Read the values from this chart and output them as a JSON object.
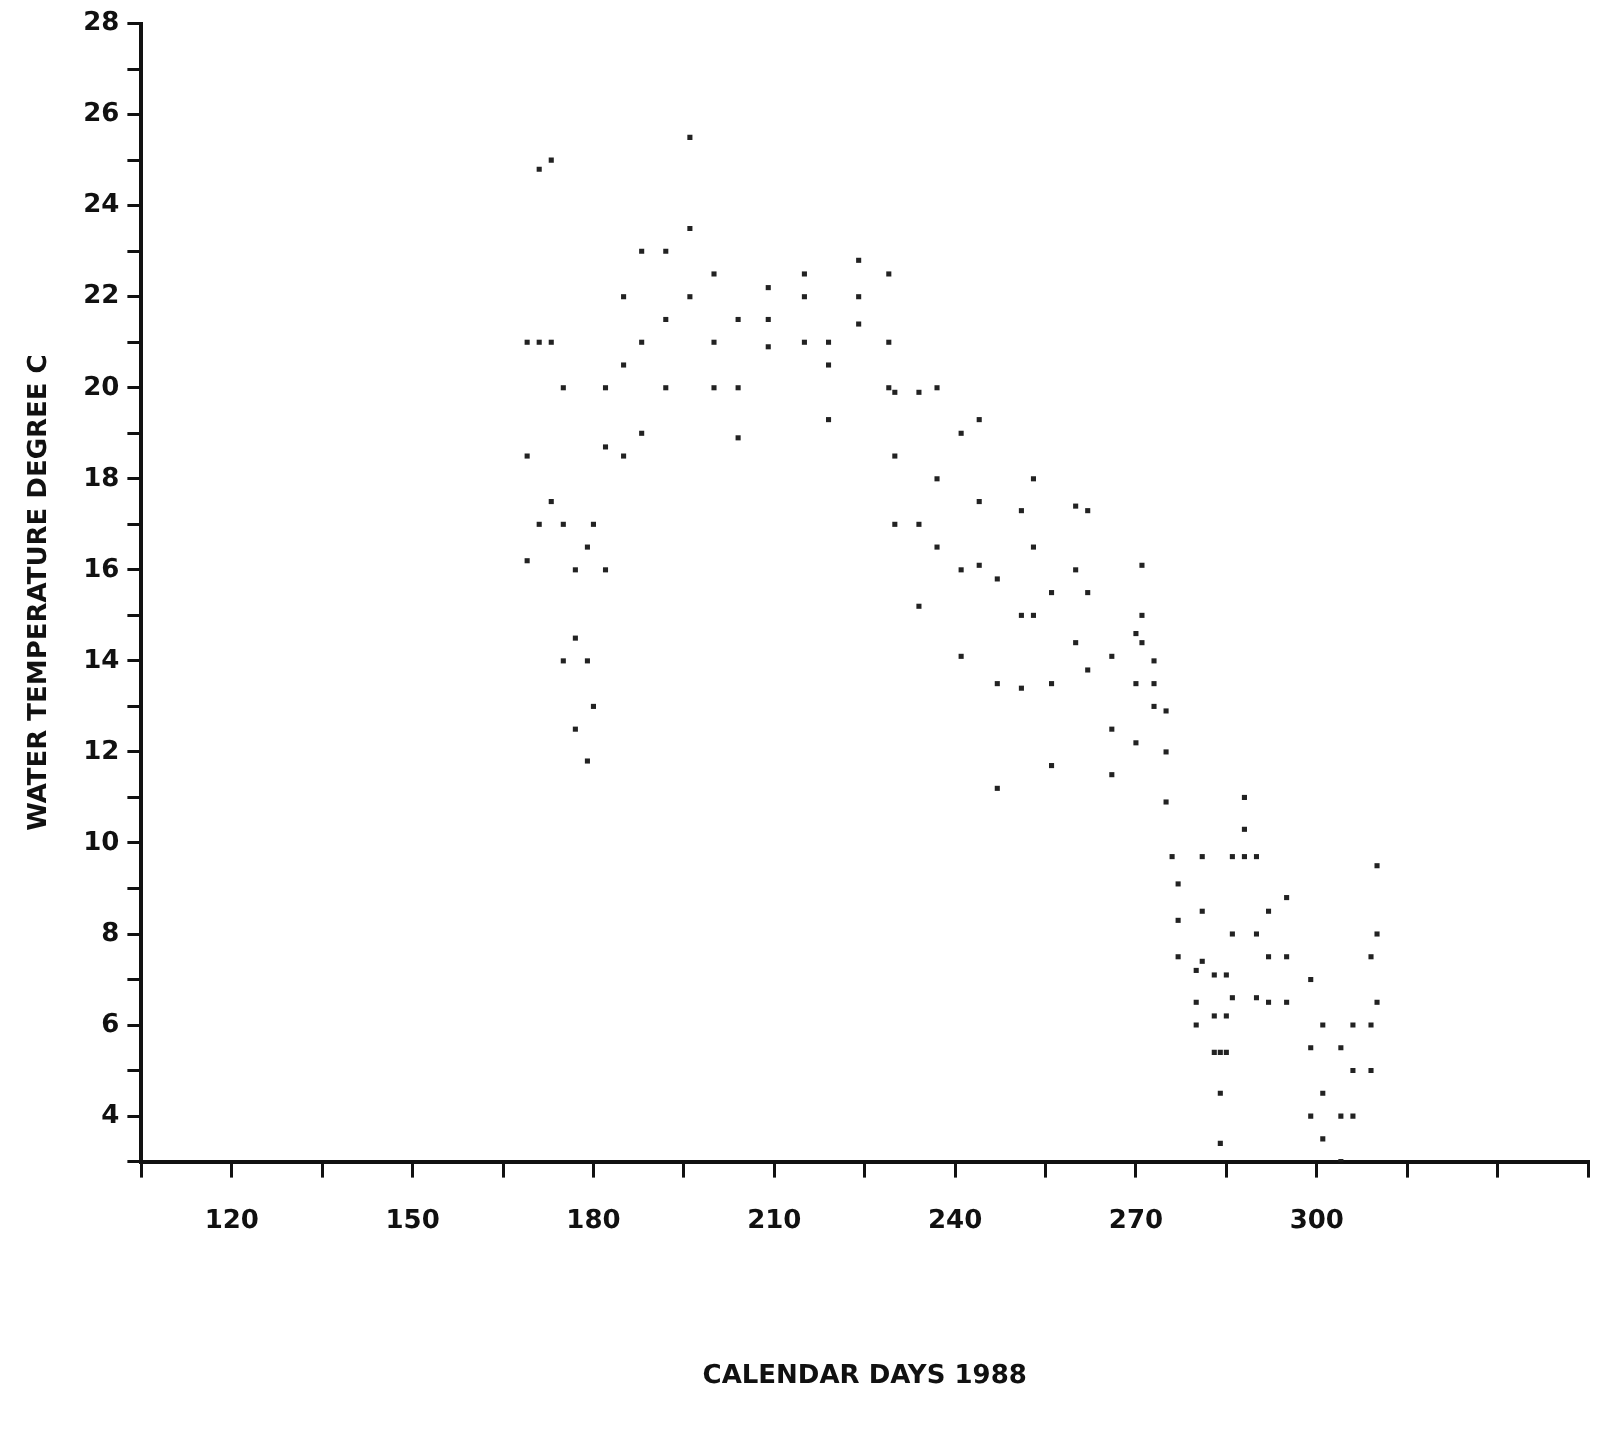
{
  "chart_data": {
    "type": "scatter",
    "xlabel": "CALENDAR DAYS 1988",
    "ylabel": "WATER TEMPERATURE DEGREE C",
    "color": "#222222",
    "marker": "square",
    "xlim": [
      105,
      345
    ],
    "xticks": [
      {
        "value": 105,
        "label": null
      },
      120,
      {
        "value": 135,
        "label": null
      },
      150,
      {
        "value": 165,
        "label": null
      },
      180,
      {
        "value": 195,
        "label": null
      },
      210,
      {
        "value": 225,
        "label": null
      },
      240,
      {
        "value": 255,
        "label": null
      },
      270,
      {
        "value": 285,
        "label": null
      },
      300,
      {
        "value": 315,
        "label": null
      },
      {
        "value": 330,
        "label": null
      },
      {
        "value": 345,
        "label": null
      }
    ],
    "ylim": [
      3,
      28
    ],
    "yticks": [
      {
        "value": 3,
        "label": null
      },
      4,
      {
        "value": 5,
        "label": null
      },
      6,
      {
        "value": 7,
        "label": null
      },
      8,
      {
        "value": 9,
        "label": null
      },
      10,
      {
        "value": 11,
        "label": null
      },
      12,
      {
        "value": 13,
        "label": null
      },
      14,
      {
        "value": 15,
        "label": null
      },
      16,
      {
        "value": 17,
        "label": null
      },
      18,
      {
        "value": 19,
        "label": null
      },
      20,
      {
        "value": 21,
        "label": null
      },
      22,
      {
        "value": 23,
        "label": null
      },
      24,
      {
        "value": 25,
        "label": null
      },
      26,
      {
        "value": 27,
        "label": null
      },
      28
    ],
    "x": [
      169,
      169,
      169,
      171,
      171,
      171,
      173,
      173,
      173,
      175,
      175,
      175,
      177,
      177,
      177,
      179,
      179,
      179,
      180,
      180,
      182,
      182,
      182,
      185,
      185,
      185,
      188,
      188,
      188,
      192,
      192,
      192,
      196,
      196,
      196,
      200,
      200,
      200,
      204,
      204,
      204,
      209,
      209,
      209,
      215,
      215,
      215,
      219,
      219,
      219,
      224,
      224,
      224,
      229,
      229,
      229,
      230,
      230,
      230,
      234,
      234,
      234,
      237,
      237,
      237,
      241,
      241,
      241,
      244,
      244,
      244,
      247,
      247,
      247,
      251,
      251,
      251,
      253,
      253,
      253,
      256,
      256,
      256,
      260,
      260,
      260,
      262,
      262,
      262,
      266,
      266,
      266,
      270,
      270,
      270,
      271,
      271,
      271,
      273,
      273,
      273,
      275,
      275,
      275,
      276,
      277,
      277,
      277,
      280,
      280,
      280,
      281,
      281,
      281,
      283,
      283,
      283,
      284,
      284,
      284,
      285,
      285,
      285,
      286,
      286,
      286,
      288,
      288,
      288,
      290,
      290,
      290,
      292,
      292,
      292,
      295,
      295,
      295,
      299,
      299,
      299,
      301,
      301,
      301,
      304,
      304,
      304,
      306,
      306,
      306,
      309,
      309,
      309,
      310,
      310,
      310
    ],
    "values": [
      16.2,
      18.5,
      21,
      17,
      21,
      24.8,
      17.5,
      21,
      25,
      14,
      17,
      20,
      12.5,
      14.5,
      16,
      11.8,
      14,
      16.5,
      13,
      17,
      16,
      18.7,
      20,
      18.5,
      20.5,
      22,
      19,
      21,
      23,
      20,
      21.5,
      23,
      22,
      23.5,
      25.5,
      20,
      21,
      22.5,
      18.9,
      20,
      21.5,
      20.9,
      21.5,
      22.2,
      21,
      22,
      22.5,
      19.3,
      20.5,
      21,
      21.4,
      22,
      22.8,
      20,
      21,
      22.5,
      17,
      18.5,
      19.9,
      15.2,
      17,
      19.9,
      16.5,
      18,
      20,
      14.1,
      16,
      19,
      16.1,
      17.5,
      19.3,
      11.2,
      13.5,
      15.8,
      13.4,
      15,
      17.3,
      15,
      16.5,
      18,
      11.7,
      13.5,
      15.5,
      14.4,
      16,
      17.4,
      13.8,
      15.5,
      17.3,
      11.5,
      12.5,
      14.1,
      12.2,
      13.5,
      14.6,
      14.4,
      15,
      16.1,
      13,
      13.5,
      14,
      10.9,
      12,
      12.9,
      9.7,
      7.5,
      8.3,
      9.1,
      6,
      6.5,
      7.2,
      7.4,
      8.5,
      9.7,
      5.4,
      6.2,
      7.1,
      3.4,
      4.5,
      5.4,
      5.4,
      6.2,
      7.1,
      6.6,
      8,
      9.7,
      9.7,
      10.3,
      11,
      6.6,
      8,
      9.7,
      6.5,
      7.5,
      8.5,
      6.5,
      7.5,
      8.8,
      4,
      5.5,
      7,
      3.5,
      4.5,
      6,
      3,
      4,
      5.5,
      4,
      5,
      6,
      5,
      6,
      7.5,
      6.5,
      8,
      9.5
    ]
  }
}
